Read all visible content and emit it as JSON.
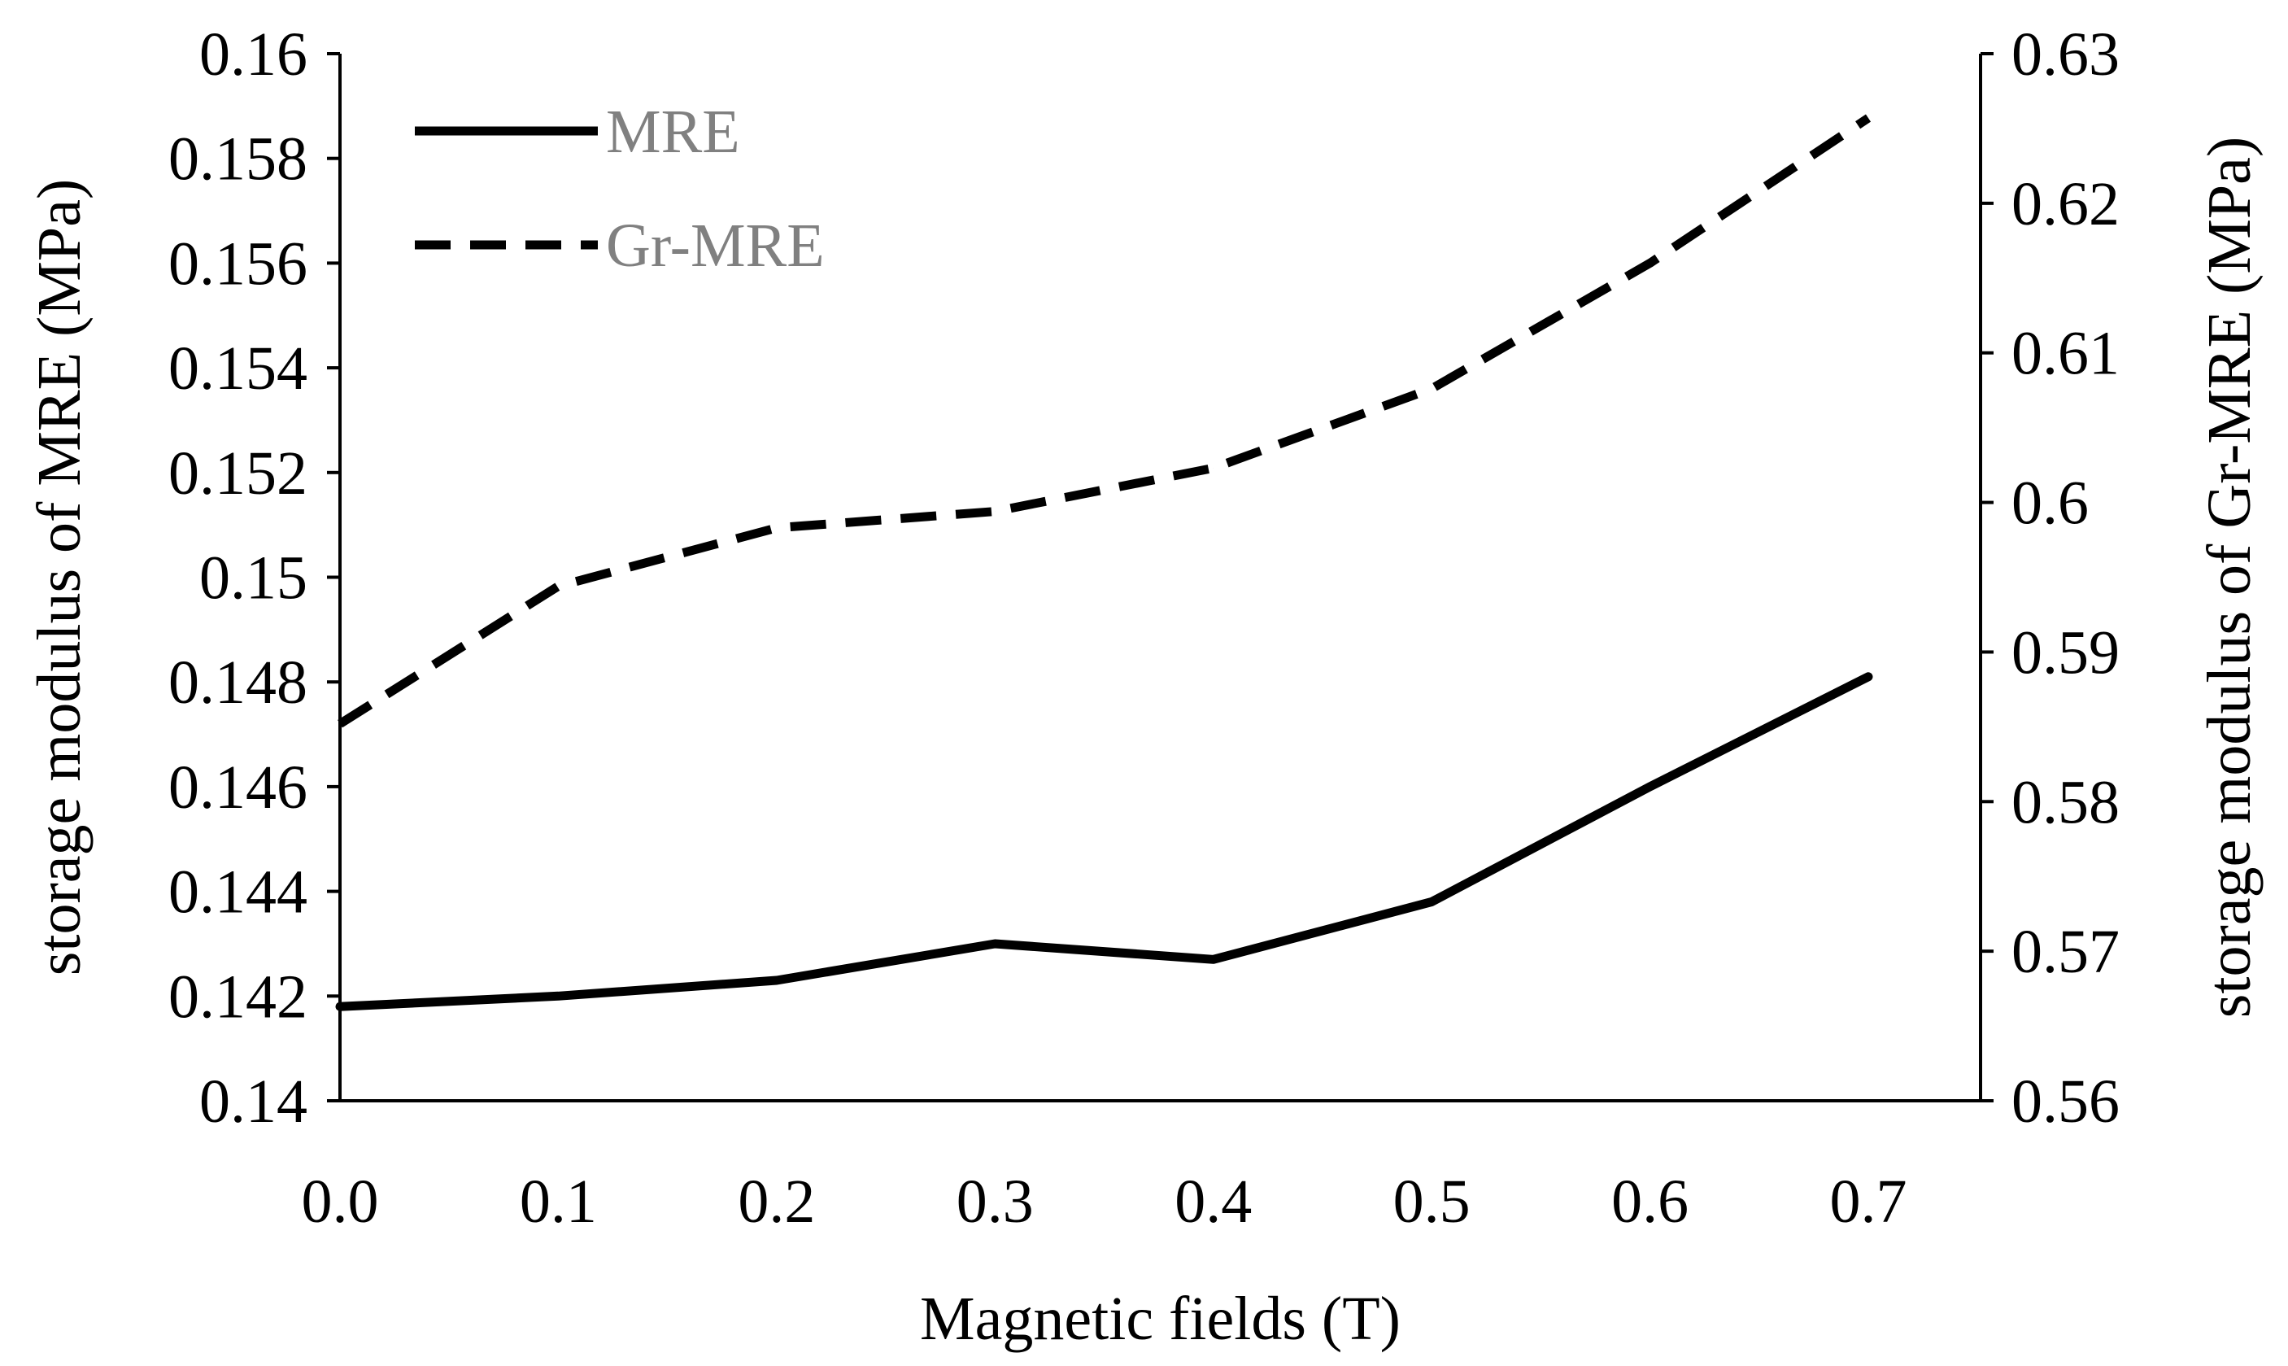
{
  "chart_data": {
    "type": "line",
    "title": "",
    "xlabel": "Magnetic fields (T)",
    "ylabel_left": "storage modulus of MRE (MPa)",
    "ylabel_right": "storage modulus of Gr-MRE (MPa)",
    "x": [
      0.0,
      0.1,
      0.2,
      0.3,
      0.4,
      0.5,
      0.6,
      0.7
    ],
    "x_tick_labels": [
      "0.0",
      "0.1",
      "0.2",
      "0.3",
      "0.4",
      "0.5",
      "0.6",
      "0.7"
    ],
    "ylim_left": [
      0.14,
      0.16
    ],
    "ylim_right": [
      0.56,
      0.63
    ],
    "y_left_tick_labels": [
      "0.14",
      "0.142",
      "0.144",
      "0.146",
      "0.148",
      "0.15",
      "0.152",
      "0.154",
      "0.156",
      "0.158",
      "0.16"
    ],
    "y_right_tick_labels": [
      "0.56",
      "0.57",
      "0.58",
      "0.59",
      "0.6",
      "0.61",
      "0.62",
      "0.63"
    ],
    "grid": false,
    "legend_position": "top-left",
    "series": [
      {
        "name": "MRE",
        "axis": "left",
        "style": "solid",
        "color": "#000000",
        "values": [
          0.1418,
          0.142,
          0.1423,
          0.143,
          0.1427,
          0.1438,
          0.146,
          0.1481
        ]
      },
      {
        "name": "Gr-MRE",
        "axis": "right",
        "style": "dashed",
        "color": "#000000",
        "values": [
          0.5852,
          0.5944,
          0.5983,
          0.5994,
          0.6023,
          0.6076,
          0.616,
          0.6257
        ]
      }
    ]
  }
}
